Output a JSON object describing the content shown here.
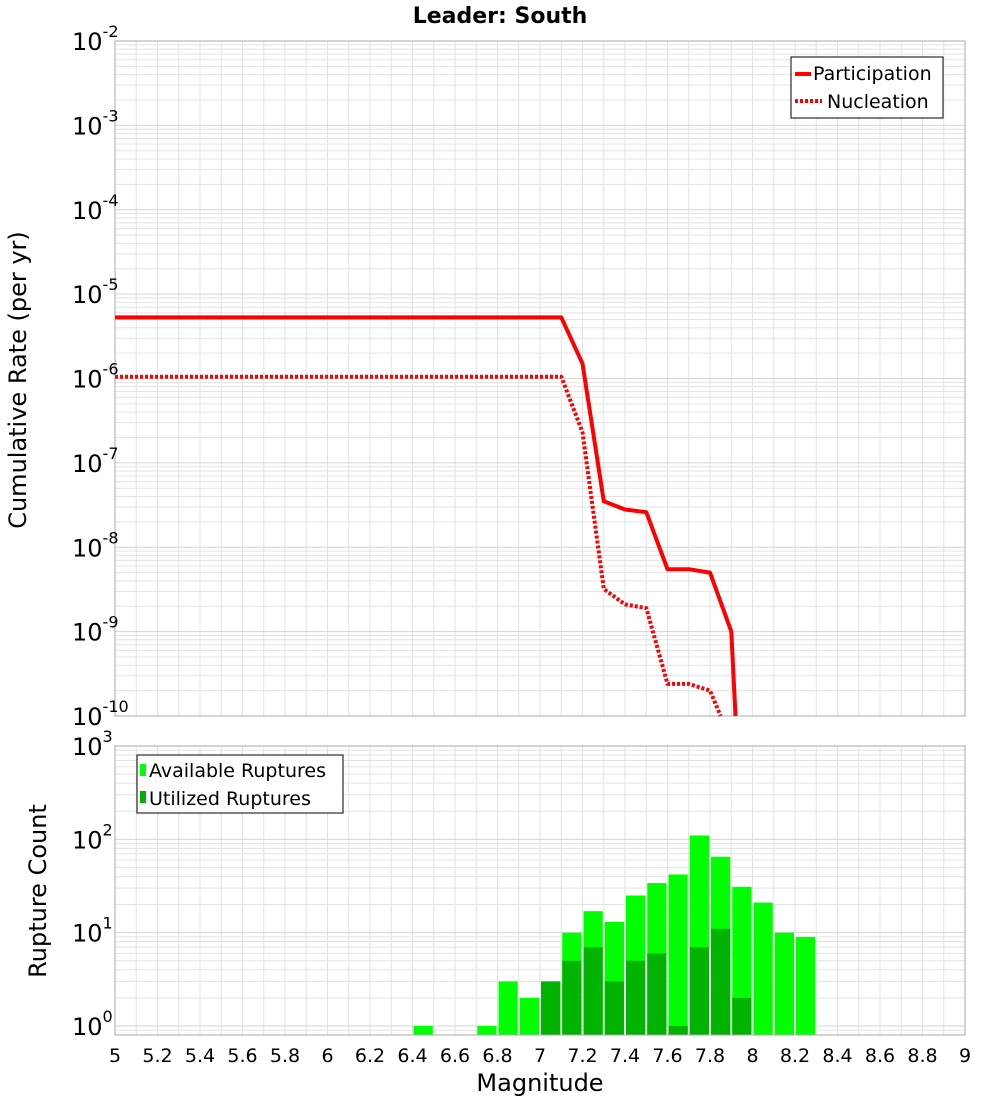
{
  "colors": {
    "line": "#ff0000",
    "available": "#00ff00",
    "utilized": "#00b300",
    "grid": "#e3e3e3",
    "frame": "#aaaaaa"
  },
  "chart_data": [
    {
      "type": "line",
      "title": "Leader: South",
      "xlabel": "",
      "ylabel": "Cumulative Rate (per yr)",
      "yscale": "log",
      "xlim": [
        5,
        9
      ],
      "ylim": [
        1e-10,
        0.01
      ],
      "ytick_exponents": [
        "-10",
        "-9",
        "-8",
        "-7",
        "-6",
        "-5",
        "-4",
        "-3",
        "-2"
      ],
      "legend_position": "top-right",
      "grid": true,
      "series": [
        {
          "name": "Participation",
          "style": "solid",
          "points": [
            [
              5.0,
              5.3e-06
            ],
            [
              7.1,
              5.3e-06
            ],
            [
              7.2,
              1.5e-06
            ],
            [
              7.3,
              3.5e-08
            ],
            [
              7.4,
              2.8e-08
            ],
            [
              7.5,
              2.6e-08
            ],
            [
              7.6,
              5.5e-09
            ],
            [
              7.7,
              5.5e-09
            ],
            [
              7.8,
              5e-09
            ],
            [
              7.9,
              1e-09
            ],
            [
              7.92,
              1e-10
            ]
          ]
        },
        {
          "name": "Nucleation",
          "style": "dotted",
          "points": [
            [
              5.0,
              1.05e-06
            ],
            [
              7.1,
              1.05e-06
            ],
            [
              7.2,
              2.3e-07
            ],
            [
              7.3,
              3.2e-09
            ],
            [
              7.4,
              2.1e-09
            ],
            [
              7.5,
              1.9e-09
            ],
            [
              7.6,
              2.4e-10
            ],
            [
              7.7,
              2.4e-10
            ],
            [
              7.8,
              2e-10
            ],
            [
              7.85,
              1e-10
            ]
          ]
        }
      ]
    },
    {
      "type": "bar",
      "xlabel": "Magnitude",
      "ylabel": "Rupture Count",
      "yscale": "log",
      "ylim": [
        0.8,
        1000
      ],
      "xlim": [
        5,
        9
      ],
      "ytick_exponents": [
        "0",
        "1",
        "2",
        "3"
      ],
      "xticks": [
        "5",
        "5.2",
        "5.4",
        "5.6",
        "5.8",
        "6",
        "6.2",
        "6.4",
        "6.6",
        "6.8",
        "7",
        "7.2",
        "7.4",
        "7.6",
        "7.8",
        "8",
        "8.2",
        "8.4",
        "8.6",
        "8.8",
        "9"
      ],
      "legend_position": "top-left",
      "grid": true,
      "bin_width": 0.1,
      "series": [
        {
          "name": "Available Ruptures",
          "bins": [
            [
              6.45,
              1
            ],
            [
              6.75,
              1
            ],
            [
              6.85,
              3
            ],
            [
              6.95,
              2
            ],
            [
              7.05,
              3
            ],
            [
              7.15,
              10
            ],
            [
              7.25,
              17
            ],
            [
              7.35,
              13
            ],
            [
              7.45,
              25
            ],
            [
              7.55,
              34
            ],
            [
              7.65,
              42
            ],
            [
              7.75,
              110
            ],
            [
              7.85,
              65
            ],
            [
              7.95,
              31
            ],
            [
              8.05,
              21
            ],
            [
              8.15,
              10
            ],
            [
              8.25,
              9
            ]
          ]
        },
        {
          "name": "Utilized Ruptures",
          "bins": [
            [
              7.05,
              3
            ],
            [
              7.15,
              5
            ],
            [
              7.25,
              7
            ],
            [
              7.35,
              3
            ],
            [
              7.45,
              5
            ],
            [
              7.55,
              6
            ],
            [
              7.65,
              1
            ],
            [
              7.75,
              7
            ],
            [
              7.85,
              11
            ],
            [
              7.95,
              2
            ]
          ]
        }
      ]
    }
  ]
}
